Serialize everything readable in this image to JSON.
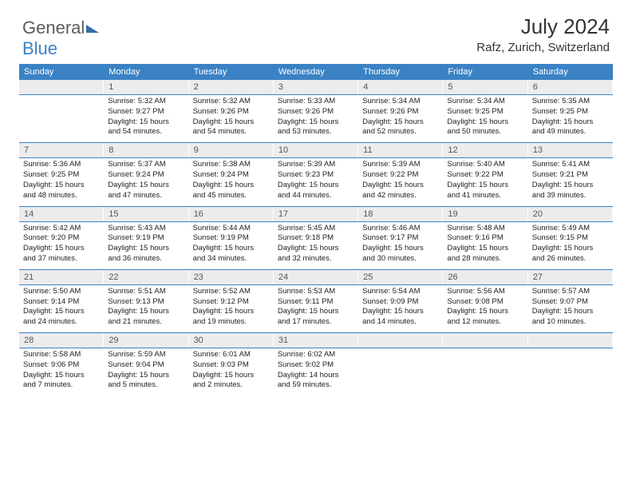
{
  "logo": {
    "part1": "General",
    "part2": "Blue"
  },
  "title": "July 2024",
  "location": "Rafz, Zurich, Switzerland",
  "colors": {
    "header_bg": "#3b82c4",
    "header_text": "#ffffff",
    "date_bg": "#ececec",
    "rule": "#3b82c4",
    "body_text": "#222222"
  },
  "dayNames": [
    "Sunday",
    "Monday",
    "Tuesday",
    "Wednesday",
    "Thursday",
    "Friday",
    "Saturday"
  ],
  "weeks": [
    [
      {
        "date": "",
        "lines": [
          "",
          "",
          "",
          ""
        ]
      },
      {
        "date": "1",
        "lines": [
          "Sunrise: 5:32 AM",
          "Sunset: 9:27 PM",
          "Daylight: 15 hours",
          "and 54 minutes."
        ]
      },
      {
        "date": "2",
        "lines": [
          "Sunrise: 5:32 AM",
          "Sunset: 9:26 PM",
          "Daylight: 15 hours",
          "and 54 minutes."
        ]
      },
      {
        "date": "3",
        "lines": [
          "Sunrise: 5:33 AM",
          "Sunset: 9:26 PM",
          "Daylight: 15 hours",
          "and 53 minutes."
        ]
      },
      {
        "date": "4",
        "lines": [
          "Sunrise: 5:34 AM",
          "Sunset: 9:26 PM",
          "Daylight: 15 hours",
          "and 52 minutes."
        ]
      },
      {
        "date": "5",
        "lines": [
          "Sunrise: 5:34 AM",
          "Sunset: 9:25 PM",
          "Daylight: 15 hours",
          "and 50 minutes."
        ]
      },
      {
        "date": "6",
        "lines": [
          "Sunrise: 5:35 AM",
          "Sunset: 9:25 PM",
          "Daylight: 15 hours",
          "and 49 minutes."
        ]
      }
    ],
    [
      {
        "date": "7",
        "lines": [
          "Sunrise: 5:36 AM",
          "Sunset: 9:25 PM",
          "Daylight: 15 hours",
          "and 48 minutes."
        ]
      },
      {
        "date": "8",
        "lines": [
          "Sunrise: 5:37 AM",
          "Sunset: 9:24 PM",
          "Daylight: 15 hours",
          "and 47 minutes."
        ]
      },
      {
        "date": "9",
        "lines": [
          "Sunrise: 5:38 AM",
          "Sunset: 9:24 PM",
          "Daylight: 15 hours",
          "and 45 minutes."
        ]
      },
      {
        "date": "10",
        "lines": [
          "Sunrise: 5:39 AM",
          "Sunset: 9:23 PM",
          "Daylight: 15 hours",
          "and 44 minutes."
        ]
      },
      {
        "date": "11",
        "lines": [
          "Sunrise: 5:39 AM",
          "Sunset: 9:22 PM",
          "Daylight: 15 hours",
          "and 42 minutes."
        ]
      },
      {
        "date": "12",
        "lines": [
          "Sunrise: 5:40 AM",
          "Sunset: 9:22 PM",
          "Daylight: 15 hours",
          "and 41 minutes."
        ]
      },
      {
        "date": "13",
        "lines": [
          "Sunrise: 5:41 AM",
          "Sunset: 9:21 PM",
          "Daylight: 15 hours",
          "and 39 minutes."
        ]
      }
    ],
    [
      {
        "date": "14",
        "lines": [
          "Sunrise: 5:42 AM",
          "Sunset: 9:20 PM",
          "Daylight: 15 hours",
          "and 37 minutes."
        ]
      },
      {
        "date": "15",
        "lines": [
          "Sunrise: 5:43 AM",
          "Sunset: 9:19 PM",
          "Daylight: 15 hours",
          "and 36 minutes."
        ]
      },
      {
        "date": "16",
        "lines": [
          "Sunrise: 5:44 AM",
          "Sunset: 9:19 PM",
          "Daylight: 15 hours",
          "and 34 minutes."
        ]
      },
      {
        "date": "17",
        "lines": [
          "Sunrise: 5:45 AM",
          "Sunset: 9:18 PM",
          "Daylight: 15 hours",
          "and 32 minutes."
        ]
      },
      {
        "date": "18",
        "lines": [
          "Sunrise: 5:46 AM",
          "Sunset: 9:17 PM",
          "Daylight: 15 hours",
          "and 30 minutes."
        ]
      },
      {
        "date": "19",
        "lines": [
          "Sunrise: 5:48 AM",
          "Sunset: 9:16 PM",
          "Daylight: 15 hours",
          "and 28 minutes."
        ]
      },
      {
        "date": "20",
        "lines": [
          "Sunrise: 5:49 AM",
          "Sunset: 9:15 PM",
          "Daylight: 15 hours",
          "and 26 minutes."
        ]
      }
    ],
    [
      {
        "date": "21",
        "lines": [
          "Sunrise: 5:50 AM",
          "Sunset: 9:14 PM",
          "Daylight: 15 hours",
          "and 24 minutes."
        ]
      },
      {
        "date": "22",
        "lines": [
          "Sunrise: 5:51 AM",
          "Sunset: 9:13 PM",
          "Daylight: 15 hours",
          "and 21 minutes."
        ]
      },
      {
        "date": "23",
        "lines": [
          "Sunrise: 5:52 AM",
          "Sunset: 9:12 PM",
          "Daylight: 15 hours",
          "and 19 minutes."
        ]
      },
      {
        "date": "24",
        "lines": [
          "Sunrise: 5:53 AM",
          "Sunset: 9:11 PM",
          "Daylight: 15 hours",
          "and 17 minutes."
        ]
      },
      {
        "date": "25",
        "lines": [
          "Sunrise: 5:54 AM",
          "Sunset: 9:09 PM",
          "Daylight: 15 hours",
          "and 14 minutes."
        ]
      },
      {
        "date": "26",
        "lines": [
          "Sunrise: 5:56 AM",
          "Sunset: 9:08 PM",
          "Daylight: 15 hours",
          "and 12 minutes."
        ]
      },
      {
        "date": "27",
        "lines": [
          "Sunrise: 5:57 AM",
          "Sunset: 9:07 PM",
          "Daylight: 15 hours",
          "and 10 minutes."
        ]
      }
    ],
    [
      {
        "date": "28",
        "lines": [
          "Sunrise: 5:58 AM",
          "Sunset: 9:06 PM",
          "Daylight: 15 hours",
          "and 7 minutes."
        ]
      },
      {
        "date": "29",
        "lines": [
          "Sunrise: 5:59 AM",
          "Sunset: 9:04 PM",
          "Daylight: 15 hours",
          "and 5 minutes."
        ]
      },
      {
        "date": "30",
        "lines": [
          "Sunrise: 6:01 AM",
          "Sunset: 9:03 PM",
          "Daylight: 15 hours",
          "and 2 minutes."
        ]
      },
      {
        "date": "31",
        "lines": [
          "Sunrise: 6:02 AM",
          "Sunset: 9:02 PM",
          "Daylight: 14 hours",
          "and 59 minutes."
        ]
      },
      {
        "date": "",
        "lines": [
          "",
          "",
          "",
          ""
        ]
      },
      {
        "date": "",
        "lines": [
          "",
          "",
          "",
          ""
        ]
      },
      {
        "date": "",
        "lines": [
          "",
          "",
          "",
          ""
        ]
      }
    ]
  ]
}
